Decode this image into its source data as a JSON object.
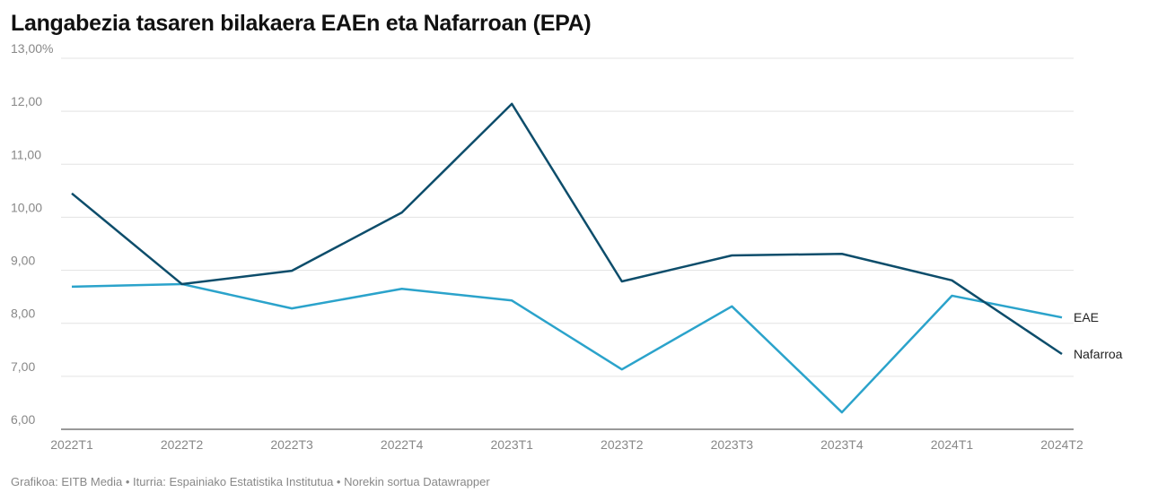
{
  "chart_data": {
    "type": "line",
    "title": "Langabezia tasaren bilakaera EAEn eta Nafarroan (EPA)",
    "xlabel": "",
    "ylabel": "",
    "categories": [
      "2022T1",
      "2022T2",
      "2022T3",
      "2022T4",
      "2023T1",
      "2023T2",
      "2023T3",
      "2023T4",
      "2024T1",
      "2024T2"
    ],
    "ylim": [
      6,
      13
    ],
    "yticks": [
      6,
      7,
      8,
      9,
      10,
      11,
      12,
      13
    ],
    "ytick_labels": [
      "6,00",
      "7,00",
      "8,00",
      "9,00",
      "10,00",
      "11,00",
      "12,00",
      "13,00%"
    ],
    "grid": true,
    "legend": "inline-right",
    "series": [
      {
        "name": "EAE",
        "color": "#2ba3cb",
        "values": [
          8.69,
          8.74,
          8.28,
          8.65,
          8.43,
          7.13,
          8.32,
          6.32,
          8.52,
          8.11
        ]
      },
      {
        "name": "Nafarroa",
        "color": "#0d4d6b",
        "values": [
          10.45,
          8.74,
          8.99,
          10.09,
          12.14,
          8.79,
          9.28,
          9.31,
          8.81,
          7.42
        ]
      }
    ]
  },
  "footer": "Grafikoa: EITB Media • Iturria: Espainiako Estatistika Institutua • Norekin sortua Datawrapper"
}
